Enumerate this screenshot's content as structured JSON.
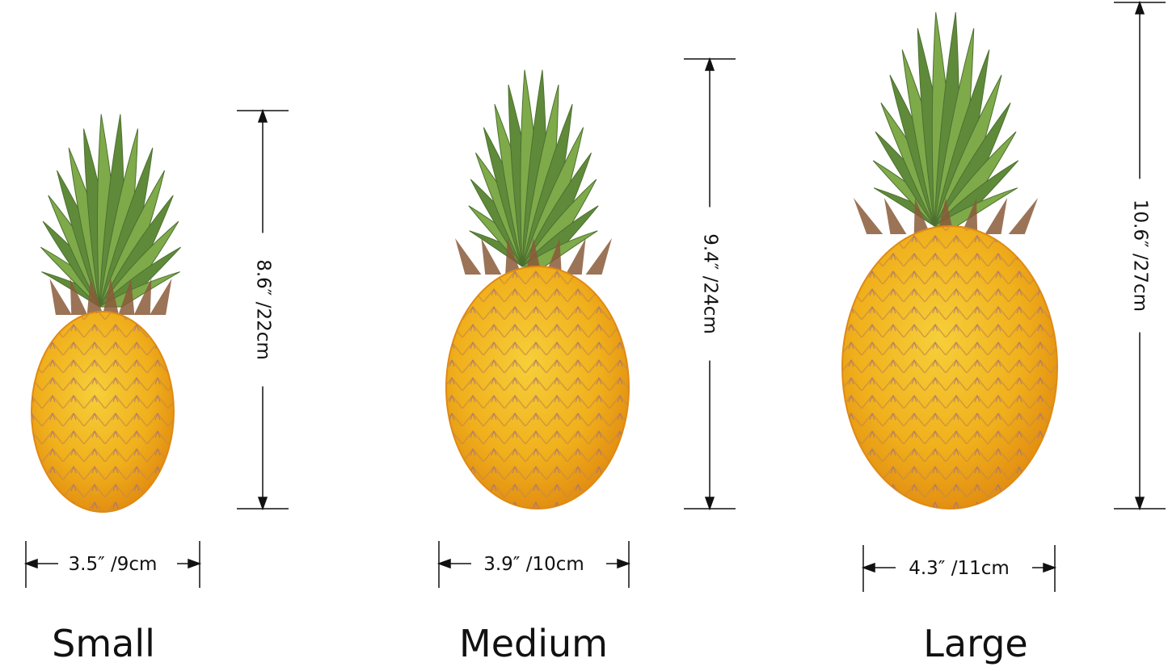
{
  "colors": {
    "body": "#f2b41c",
    "body_edge": "#e08a12",
    "leaf": "#7faa4a",
    "leaf_dark": "#5f8a3a",
    "brown": "#8a5a3a",
    "line": "#111111"
  },
  "items": [
    {
      "name": "Small",
      "height_label": "8.6″ /22cm",
      "width_label": "3.5″ /9cm"
    },
    {
      "name": "Medium",
      "height_label": "9.4″ /24cm",
      "width_label": "3.9″ /10cm"
    },
    {
      "name": "Large",
      "height_label": "10.6″ /27cm",
      "width_label": "4.3″ /11cm"
    }
  ]
}
